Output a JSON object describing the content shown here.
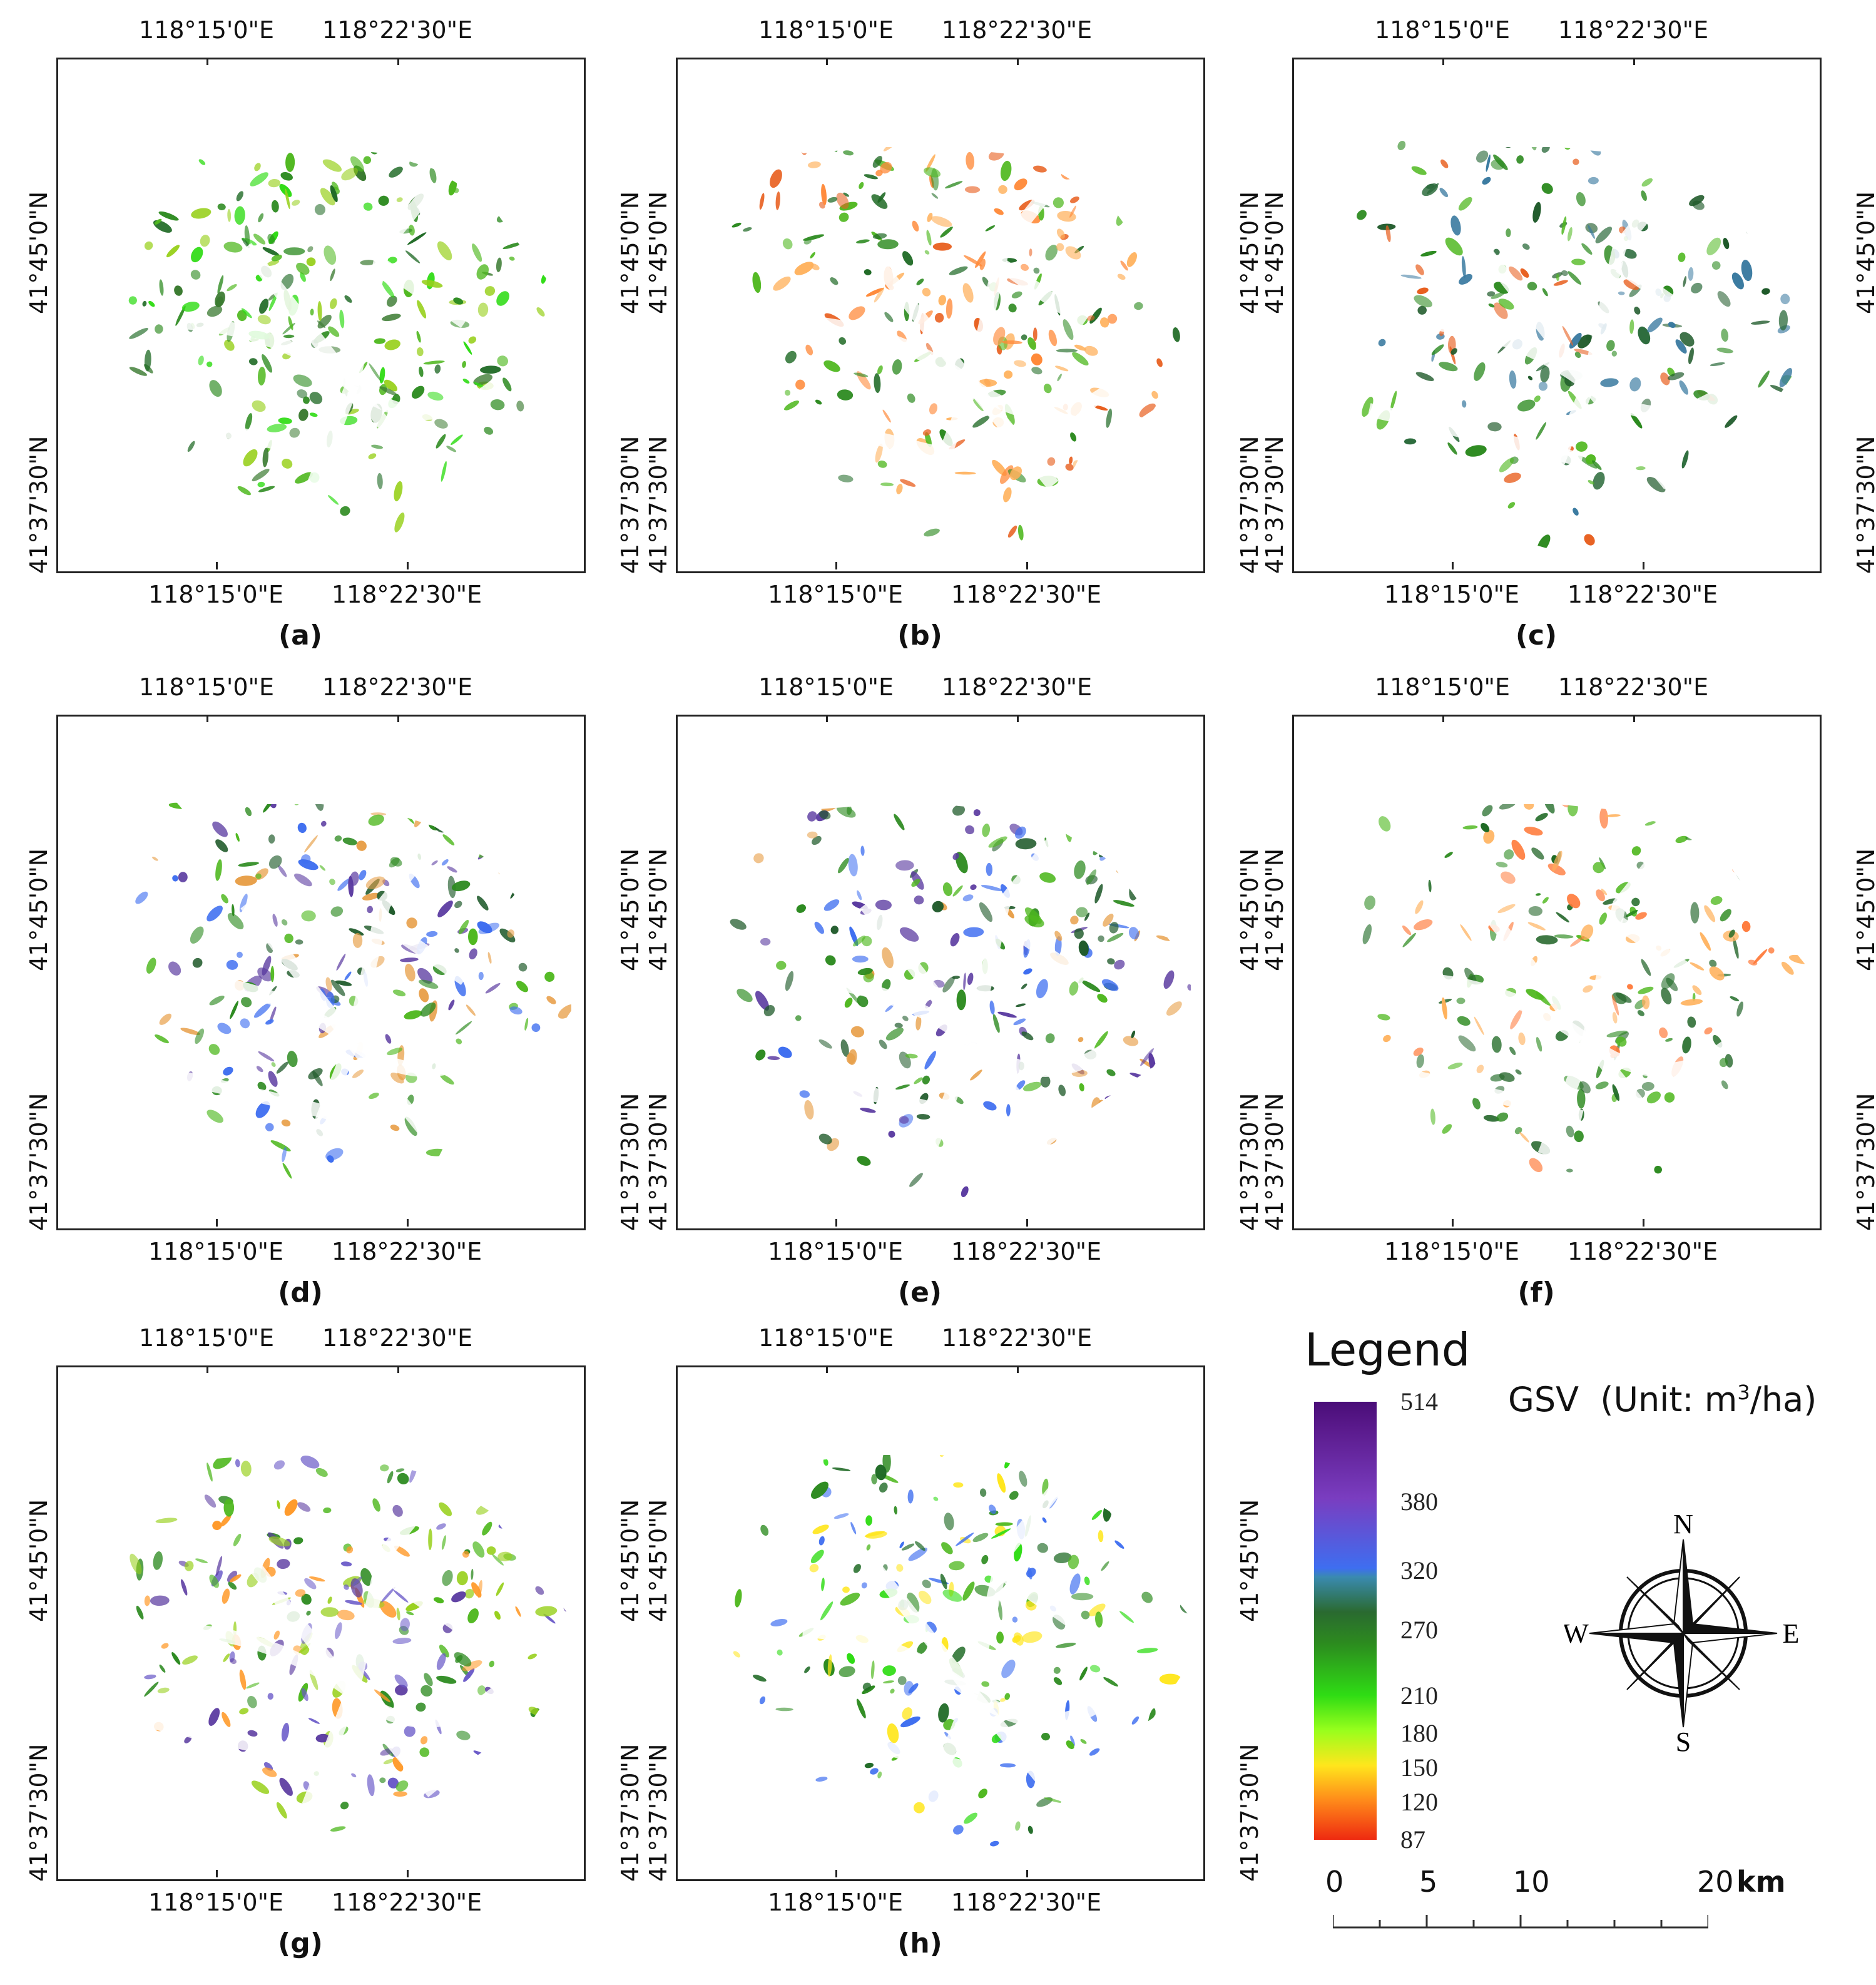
{
  "panels": [
    {
      "id": "a",
      "label": "(a)",
      "palette": [
        "#2c8a1f",
        "#4fb81f",
        "#2fdc14",
        "#98d01c",
        "#1f6a25",
        "#3a7a30"
      ]
    },
    {
      "id": "b",
      "label": "(b)",
      "palette": [
        "#2c8a1f",
        "#ff8a3a",
        "#e86020",
        "#4fb81f",
        "#ffb05a",
        "#1f6a25"
      ]
    },
    {
      "id": "c",
      "label": "(c)",
      "palette": [
        "#2c8a1f",
        "#2a6a3a",
        "#3a7aa0",
        "#1f5a2a",
        "#4fb81f",
        "#e86020"
      ]
    },
    {
      "id": "d",
      "label": "(d)",
      "palette": [
        "#2c8a1f",
        "#1f5a2a",
        "#e8a04a",
        "#5a3aa0",
        "#3e6ef0",
        "#4fb81f"
      ]
    },
    {
      "id": "e",
      "label": "(e)",
      "palette": [
        "#2c8a1f",
        "#1f5a2a",
        "#e8a04a",
        "#5a3aa0",
        "#3e6ef0",
        "#4fb81f"
      ]
    },
    {
      "id": "f",
      "label": "(f)",
      "palette": [
        "#2c8a1f",
        "#1f6a25",
        "#ff7a3a",
        "#4fb81f",
        "#ffb05a",
        "#2a6a30"
      ]
    },
    {
      "id": "g",
      "label": "(g)",
      "palette": [
        "#4fb81f",
        "#98d01c",
        "#ff9a2a",
        "#5a3aa0",
        "#6a5ac8",
        "#2c8a1f"
      ]
    },
    {
      "id": "h",
      "label": "(h)",
      "palette": [
        "#2c8a1f",
        "#4fb81f",
        "#2fdc14",
        "#ffe61c",
        "#3e6ef0",
        "#1f6a25"
      ]
    }
  ],
  "axes": {
    "lon_top": [
      "118°15'0\"E",
      "118°22'30\"E"
    ],
    "lon_bottom": [
      "118°15'0\"E",
      "118°22'30\"E"
    ],
    "lat_left": [
      "41°45'0\"N",
      "41°37'30\"N"
    ],
    "lat_right": [
      "41°45'0\"N",
      "41°37'30\"N"
    ]
  },
  "legend": {
    "title": "Legend",
    "variable": "GSV",
    "unit_prefix": "(Unit: m",
    "unit_sup": "3",
    "unit_suffix": "/ha)",
    "breaks": [
      "514",
      "380",
      "320",
      "270",
      "210",
      "180",
      "150",
      "120",
      "87"
    ],
    "break_values": [
      514,
      380,
      320,
      270,
      210,
      180,
      150,
      120,
      87
    ],
    "colors": {
      "low": "#ee2a10",
      "mid_yellow": "#ffe61c",
      "mid_green": "#2c8a1f",
      "high_blue": "#3e6ef0",
      "high_purple": "#4a0d78"
    }
  },
  "compass": {
    "n": "N",
    "s": "S",
    "e": "E",
    "w": "W"
  },
  "scale": {
    "ticks": [
      "0",
      "5",
      "10",
      "20"
    ],
    "unit": "km"
  }
}
